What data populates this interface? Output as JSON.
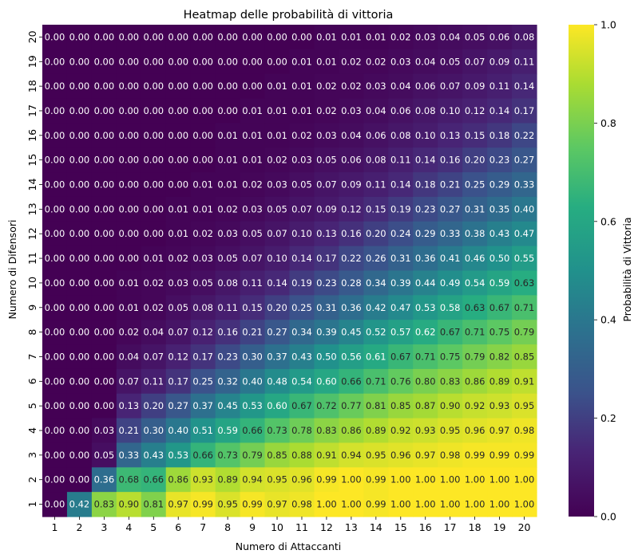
{
  "chart_data": {
    "type": "heatmap",
    "title": "Heatmap delle probabilità di vittoria",
    "xlabel": "Numero di Attaccanti",
    "ylabel": "Numero di Difensori",
    "colorbar_label": "Probabilità di Vittoria",
    "colormap": "viridis",
    "vmin": 0.0,
    "vmax": 1.0,
    "colorbar_ticks": [
      "0.0",
      "0.2",
      "0.4",
      "0.6",
      "0.8",
      "1.0"
    ],
    "x": [
      "1",
      "2",
      "3",
      "4",
      "5",
      "6",
      "7",
      "8",
      "9",
      "10",
      "11",
      "12",
      "13",
      "14",
      "15",
      "16",
      "17",
      "18",
      "19",
      "20"
    ],
    "y": [
      "20",
      "19",
      "18",
      "17",
      "16",
      "15",
      "14",
      "13",
      "12",
      "11",
      "10",
      "9",
      "8",
      "7",
      "6",
      "5",
      "4",
      "3",
      "2",
      "1"
    ],
    "values": [
      [
        0.0,
        0.0,
        0.0,
        0.0,
        0.0,
        0.0,
        0.0,
        0.0,
        0.0,
        0.0,
        0.0,
        0.01,
        0.01,
        0.01,
        0.02,
        0.03,
        0.04,
        0.05,
        0.06,
        0.08
      ],
      [
        0.0,
        0.0,
        0.0,
        0.0,
        0.0,
        0.0,
        0.0,
        0.0,
        0.0,
        0.0,
        0.01,
        0.01,
        0.02,
        0.02,
        0.03,
        0.04,
        0.05,
        0.07,
        0.09,
        0.11
      ],
      [
        0.0,
        0.0,
        0.0,
        0.0,
        0.0,
        0.0,
        0.0,
        0.0,
        0.0,
        0.01,
        0.01,
        0.02,
        0.02,
        0.03,
        0.04,
        0.06,
        0.07,
        0.09,
        0.11,
        0.14
      ],
      [
        0.0,
        0.0,
        0.0,
        0.0,
        0.0,
        0.0,
        0.0,
        0.0,
        0.01,
        0.01,
        0.01,
        0.02,
        0.03,
        0.04,
        0.06,
        0.08,
        0.1,
        0.12,
        0.14,
        0.17
      ],
      [
        0.0,
        0.0,
        0.0,
        0.0,
        0.0,
        0.0,
        0.0,
        0.01,
        0.01,
        0.01,
        0.02,
        0.03,
        0.04,
        0.06,
        0.08,
        0.1,
        0.13,
        0.15,
        0.18,
        0.22
      ],
      [
        0.0,
        0.0,
        0.0,
        0.0,
        0.0,
        0.0,
        0.0,
        0.01,
        0.01,
        0.02,
        0.03,
        0.05,
        0.06,
        0.08,
        0.11,
        0.14,
        0.16,
        0.2,
        0.23,
        0.27
      ],
      [
        0.0,
        0.0,
        0.0,
        0.0,
        0.0,
        0.0,
        0.01,
        0.01,
        0.02,
        0.03,
        0.05,
        0.07,
        0.09,
        0.11,
        0.14,
        0.18,
        0.21,
        0.25,
        0.29,
        0.33
      ],
      [
        0.0,
        0.0,
        0.0,
        0.0,
        0.0,
        0.01,
        0.01,
        0.02,
        0.03,
        0.05,
        0.07,
        0.09,
        0.12,
        0.15,
        0.19,
        0.23,
        0.27,
        0.31,
        0.35,
        0.4
      ],
      [
        0.0,
        0.0,
        0.0,
        0.0,
        0.0,
        0.01,
        0.02,
        0.03,
        0.05,
        0.07,
        0.1,
        0.13,
        0.16,
        0.2,
        0.24,
        0.29,
        0.33,
        0.38,
        0.43,
        0.47
      ],
      [
        0.0,
        0.0,
        0.0,
        0.0,
        0.01,
        0.02,
        0.03,
        0.05,
        0.07,
        0.1,
        0.14,
        0.17,
        0.22,
        0.26,
        0.31,
        0.36,
        0.41,
        0.46,
        0.5,
        0.55
      ],
      [
        0.0,
        0.0,
        0.0,
        0.01,
        0.02,
        0.03,
        0.05,
        0.08,
        0.11,
        0.14,
        0.19,
        0.23,
        0.28,
        0.34,
        0.39,
        0.44,
        0.49,
        0.54,
        0.59,
        0.63
      ],
      [
        0.0,
        0.0,
        0.0,
        0.01,
        0.02,
        0.05,
        0.08,
        0.11,
        0.15,
        0.2,
        0.25,
        0.31,
        0.36,
        0.42,
        0.47,
        0.53,
        0.58,
        0.63,
        0.67,
        0.71
      ],
      [
        0.0,
        0.0,
        0.0,
        0.02,
        0.04,
        0.07,
        0.12,
        0.16,
        0.21,
        0.27,
        0.34,
        0.39,
        0.45,
        0.52,
        0.57,
        0.62,
        0.67,
        0.71,
        0.75,
        0.79
      ],
      [
        0.0,
        0.0,
        0.0,
        0.04,
        0.07,
        0.12,
        0.17,
        0.23,
        0.3,
        0.37,
        0.43,
        0.5,
        0.56,
        0.61,
        0.67,
        0.71,
        0.75,
        0.79,
        0.82,
        0.85
      ],
      [
        0.0,
        0.0,
        0.0,
        0.07,
        0.11,
        0.17,
        0.25,
        0.32,
        0.4,
        0.48,
        0.54,
        0.6,
        0.66,
        0.71,
        0.76,
        0.8,
        0.83,
        0.86,
        0.89,
        0.91
      ],
      [
        0.0,
        0.0,
        0.0,
        0.13,
        0.2,
        0.27,
        0.37,
        0.45,
        0.53,
        0.6,
        0.67,
        0.72,
        0.77,
        0.81,
        0.85,
        0.87,
        0.9,
        0.92,
        0.93,
        0.95
      ],
      [
        0.0,
        0.0,
        0.03,
        0.21,
        0.3,
        0.4,
        0.51,
        0.59,
        0.66,
        0.73,
        0.78,
        0.83,
        0.86,
        0.89,
        0.92,
        0.93,
        0.95,
        0.96,
        0.97,
        0.98
      ],
      [
        0.0,
        0.0,
        0.05,
        0.33,
        0.43,
        0.53,
        0.66,
        0.73,
        0.79,
        0.85,
        0.88,
        0.91,
        0.94,
        0.95,
        0.96,
        0.97,
        0.98,
        0.99,
        0.99,
        0.99
      ],
      [
        0.0,
        0.0,
        0.36,
        0.68,
        0.66,
        0.86,
        0.93,
        0.89,
        0.94,
        0.95,
        0.96,
        0.99,
        1.0,
        0.99,
        1.0,
        1.0,
        1.0,
        1.0,
        1.0,
        1.0
      ],
      [
        0.0,
        0.42,
        0.83,
        0.9,
        0.81,
        0.97,
        0.99,
        0.95,
        0.99,
        0.97,
        0.98,
        1.0,
        1.0,
        0.99,
        1.0,
        1.0,
        1.0,
        1.0,
        1.0,
        1.0
      ]
    ],
    "grid": false,
    "annotations": "cell values shown with two decimals"
  }
}
